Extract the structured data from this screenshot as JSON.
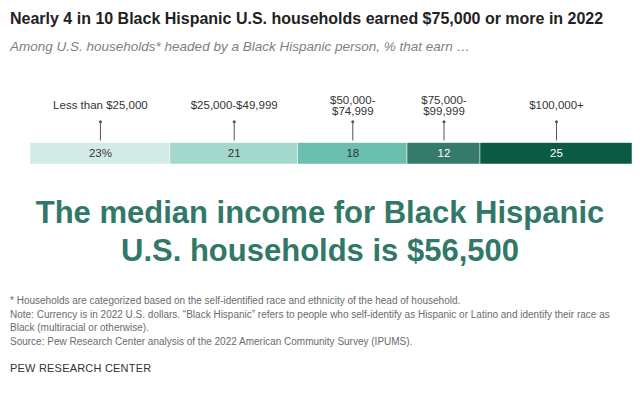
{
  "chart_data": {
    "type": "bar",
    "orientation": "horizontal",
    "stacked": true,
    "title": "Nearly 4 in 10 Black Hispanic U.S. households earned $75,000 or more in 2022",
    "subtitle": "Among U.S. households* headed by a Black Hispanic person, % that earn …",
    "categories": [
      "Less than $25,000",
      "$25,000-$49,999",
      "$50,000-$74,999",
      "$75,000-$99,999",
      "$100,000+"
    ],
    "values": [
      23,
      21,
      18,
      12,
      25
    ],
    "value_labels": [
      "23%",
      "21",
      "18",
      "12",
      "25"
    ],
    "colors": [
      "#d3ebe6",
      "#a5d8cc",
      "#6abfae",
      "#367a6b",
      "#0b5a44"
    ],
    "data_labels": true,
    "tick_labels": false,
    "xlim": [
      0,
      99
    ],
    "annotation": "The median income for Black Hispanic U.S. households is $56,500",
    "footnotes": [
      "* Households are categorized based on the self-identified race and ethnicity of the head of household.",
      "Note: Currency is in 2022 U.S. dollars. “Black Hispanic” refers to people who self-identify as Hispanic or Latino and identify their race as Black (multiracial or otherwise).",
      "Source: Pew Research Center analysis of the 2022 American Community Survey (IPUMS)."
    ],
    "credit": "PEW RESEARCH CENTER"
  }
}
